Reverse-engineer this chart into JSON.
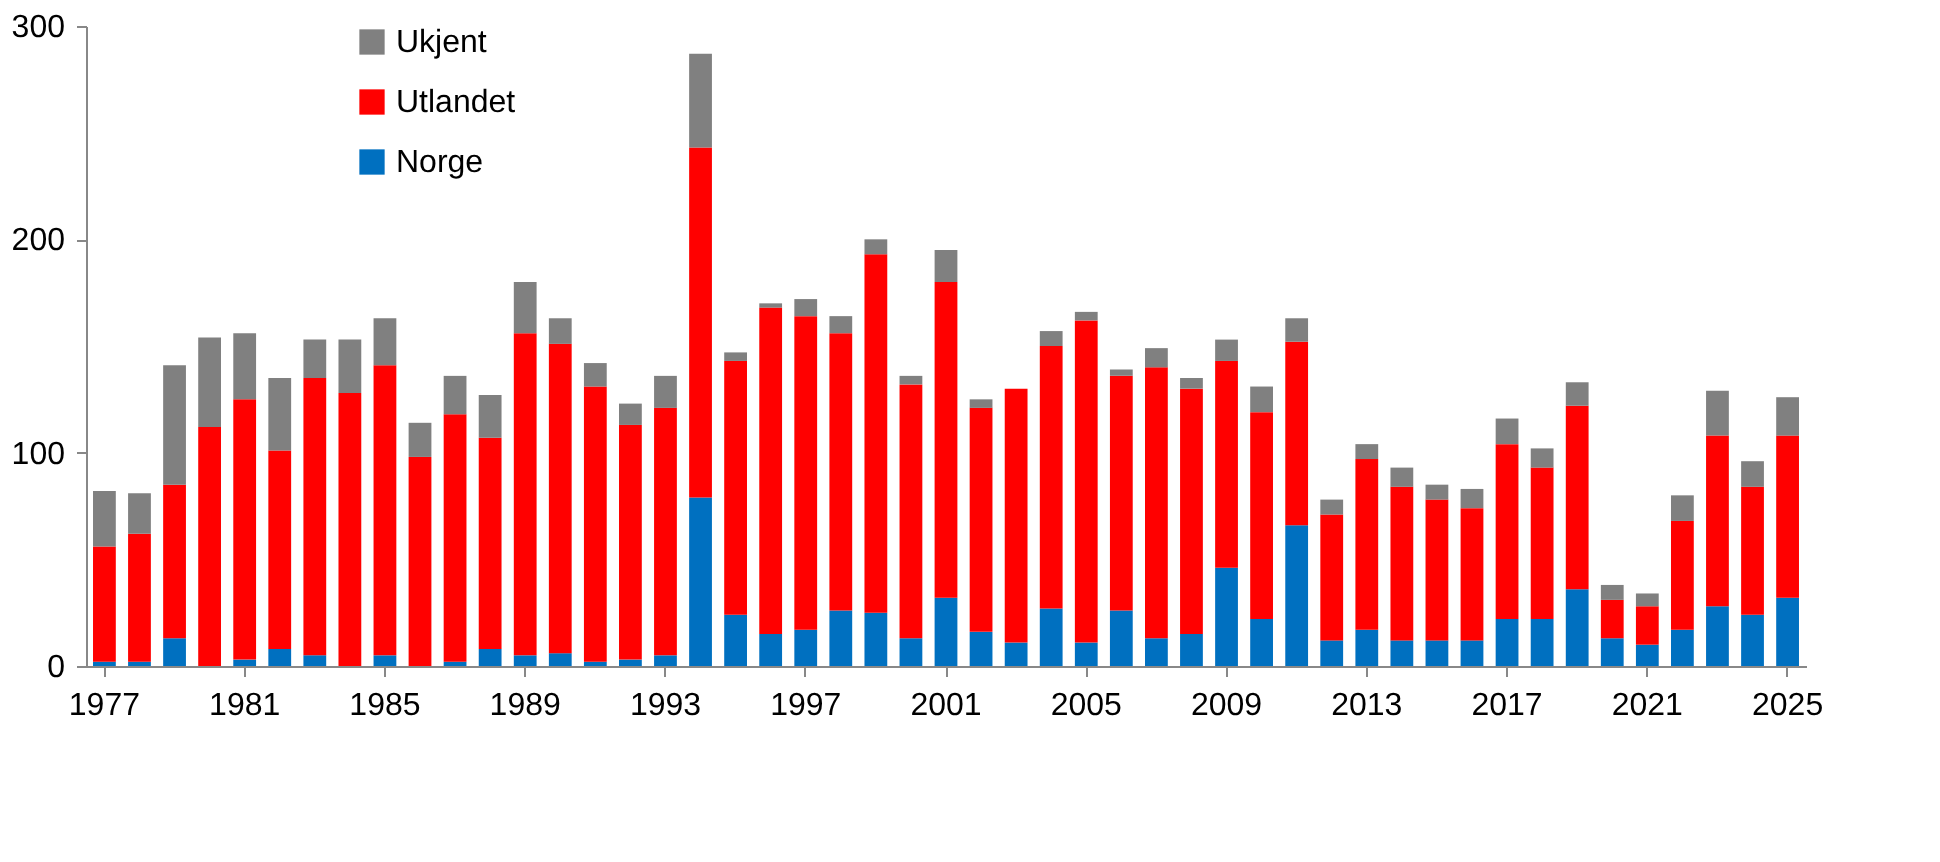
{
  "chart_data": {
    "type": "bar",
    "stacked": true,
    "categories": [
      "1977",
      null,
      null,
      null,
      "1981",
      null,
      null,
      null,
      "1985",
      null,
      null,
      null,
      "1989",
      null,
      null,
      null,
      "1993",
      null,
      null,
      null,
      "1997",
      null,
      null,
      null,
      "2001",
      null,
      null,
      null,
      "2005",
      null,
      null,
      null,
      "2009",
      null,
      null,
      null,
      "2013",
      null,
      null,
      null,
      "2017",
      null,
      null,
      null,
      "2021",
      null,
      null,
      null,
      "2025"
    ],
    "series": [
      {
        "name": "Norge",
        "color": "#0070c0",
        "values": [
          2,
          2,
          13,
          0,
          3,
          8,
          5,
          0,
          5,
          0,
          2,
          8,
          5,
          6,
          2,
          3,
          5,
          79,
          24,
          15,
          17,
          26,
          25,
          13,
          32,
          16,
          11,
          27,
          11,
          26,
          13,
          15,
          46,
          22,
          66,
          12,
          17,
          12,
          12,
          12,
          22,
          22,
          36,
          13,
          10,
          17,
          28,
          24,
          32
        ]
      },
      {
        "name": "Utlandet",
        "color": "#ff0000",
        "values": [
          54,
          60,
          72,
          112,
          122,
          93,
          130,
          128,
          136,
          98,
          116,
          99,
          151,
          145,
          129,
          110,
          116,
          164,
          119,
          153,
          147,
          130,
          168,
          119,
          148,
          105,
          119,
          123,
          151,
          110,
          127,
          115,
          97,
          97,
          86,
          59,
          80,
          72,
          66,
          62,
          82,
          71,
          86,
          18,
          18,
          51,
          80,
          60,
          76
        ]
      },
      {
        "name": "Ukjent",
        "color": "#808080",
        "values": [
          26,
          19,
          56,
          42,
          31,
          34,
          18,
          25,
          22,
          16,
          18,
          20,
          24,
          12,
          11,
          10,
          15,
          44,
          4,
          2,
          8,
          8,
          7,
          4,
          15,
          4,
          0,
          7,
          4,
          3,
          9,
          5,
          10,
          12,
          11,
          7,
          7,
          9,
          7,
          9,
          12,
          9,
          11,
          7,
          6,
          12,
          21,
          12,
          18
        ]
      }
    ],
    "ylim": [
      0,
      300
    ],
    "yticks": [
      0,
      100,
      200,
      300
    ],
    "grid": false,
    "legend": "top left"
  }
}
